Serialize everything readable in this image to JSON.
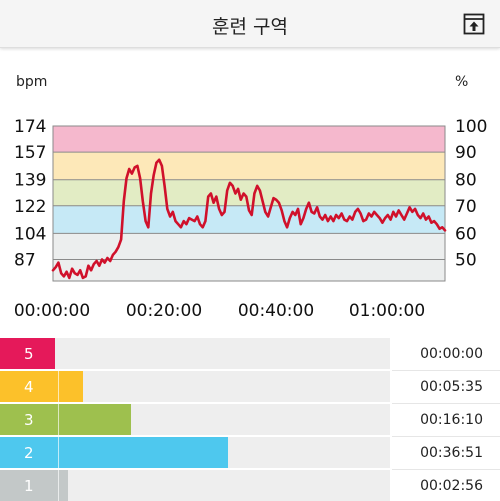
{
  "header": {
    "title": "훈련 구역",
    "export_icon": "export-icon"
  },
  "chart_data": {
    "type": "line",
    "left_unit": "bpm",
    "right_unit": "%",
    "y_left_ticks": [
      174,
      157,
      139,
      122,
      104,
      87
    ],
    "y_right_ticks": [
      100,
      90,
      80,
      70,
      60,
      50
    ],
    "x_ticks": [
      "00:00:00",
      "00:20:00",
      "00:40:00",
      "01:00:00"
    ],
    "xlim_minutes": [
      0,
      72
    ],
    "ylim_bpm": [
      73,
      174
    ],
    "zone_bands": [
      {
        "zone": 5,
        "from": 157,
        "to": 174,
        "color": "#f5b8cd"
      },
      {
        "zone": 4,
        "from": 139,
        "to": 157,
        "color": "#fde8b8"
      },
      {
        "zone": 3,
        "from": 122,
        "to": 139,
        "color": "#e2ecc4"
      },
      {
        "zone": 2,
        "from": 104,
        "to": 122,
        "color": "#c6e9f6"
      },
      {
        "zone": 1,
        "from": 73,
        "to": 104,
        "color": "#eceeee"
      }
    ],
    "grid": true,
    "line_color": "#d0112b",
    "series": [
      {
        "minutes": [
          0,
          0.5,
          1,
          1.5,
          2,
          2.5,
          3,
          3.5,
          4,
          4.5,
          5,
          5.5,
          6,
          6.5,
          7,
          7.5,
          8,
          8.5,
          9,
          9.5,
          10,
          10.5,
          11,
          11.5,
          12,
          12.5,
          13,
          13.5,
          14,
          14.5,
          15,
          15.5,
          16,
          16.5,
          17,
          17.5,
          18,
          18.5,
          19,
          19.5,
          20,
          20.5,
          21,
          21.5,
          22,
          22.5,
          23,
          23.5,
          24,
          24.5,
          25,
          25.5,
          26,
          26.5,
          27,
          27.5,
          28,
          28.5,
          29,
          29.5,
          30,
          30.5,
          31,
          31.5,
          32,
          32.5,
          33,
          33.5,
          34,
          34.5,
          35,
          35.5,
          36,
          36.5,
          37,
          37.5,
          38,
          38.5,
          39,
          39.5,
          40,
          40.5,
          41,
          41.5,
          42,
          42.5,
          43,
          43.5,
          44,
          44.5,
          45,
          45.5,
          46,
          46.5,
          47,
          47.5,
          48,
          48.5,
          49,
          49.5,
          50,
          50.5,
          51,
          51.5,
          52,
          52.5,
          53,
          53.5,
          54,
          54.5,
          55,
          55.5,
          56,
          56.5,
          57,
          57.5,
          58,
          58.5,
          59,
          59.5,
          60,
          60.5,
          61,
          61.5,
          62,
          62.5,
          63,
          63.5,
          64,
          64.5,
          65,
          65.5,
          66,
          66.5,
          67,
          67.5,
          68,
          68.5,
          69,
          69.5,
          70,
          70.5,
          71,
          71.5,
          72
        ],
        "bpm": [
          80,
          82,
          85,
          78,
          76,
          79,
          75,
          81,
          78,
          77,
          80,
          75,
          76,
          83,
          80,
          84,
          86,
          83,
          87,
          85,
          88,
          86,
          90,
          92,
          95,
          100,
          125,
          140,
          146,
          143,
          147,
          148,
          140,
          125,
          112,
          108,
          130,
          142,
          150,
          152,
          148,
          135,
          120,
          115,
          118,
          112,
          110,
          108,
          112,
          110,
          114,
          113,
          112,
          115,
          110,
          108,
          112,
          128,
          130,
          124,
          128,
          120,
          116,
          118,
          132,
          137,
          135,
          130,
          133,
          126,
          130,
          128,
          119,
          116,
          130,
          135,
          132,
          125,
          118,
          115,
          121,
          127,
          126,
          124,
          119,
          112,
          108,
          114,
          118,
          116,
          120,
          110,
          114,
          120,
          124,
          118,
          117,
          121,
          115,
          113,
          116,
          112,
          115,
          112,
          116,
          114,
          117,
          113,
          112,
          115,
          113,
          118,
          120,
          117,
          112,
          113,
          117,
          115,
          118,
          116,
          114,
          111,
          114,
          116,
          113,
          118,
          115,
          119,
          116,
          113,
          117,
          121,
          118,
          120,
          116,
          114,
          117,
          113,
          115,
          111,
          112,
          110,
          107,
          108,
          106
        ]
      }
    ]
  },
  "zones": [
    {
      "number": "5",
      "time": "00:00:00",
      "fraction": 0.11,
      "color": "#e5195a"
    },
    {
      "number": "4",
      "time": "00:05:35",
      "fraction": 0.165,
      "color": "#fcc12a"
    },
    {
      "number": "3",
      "time": "00:16:10",
      "fraction": 0.262,
      "color": "#9ec04e"
    },
    {
      "number": "2",
      "time": "00:36:51",
      "fraction": 0.455,
      "color": "#4ec8ee"
    },
    {
      "number": "1",
      "time": "00:02:56",
      "fraction": 0.135,
      "color": "#c3c8c8"
    }
  ]
}
